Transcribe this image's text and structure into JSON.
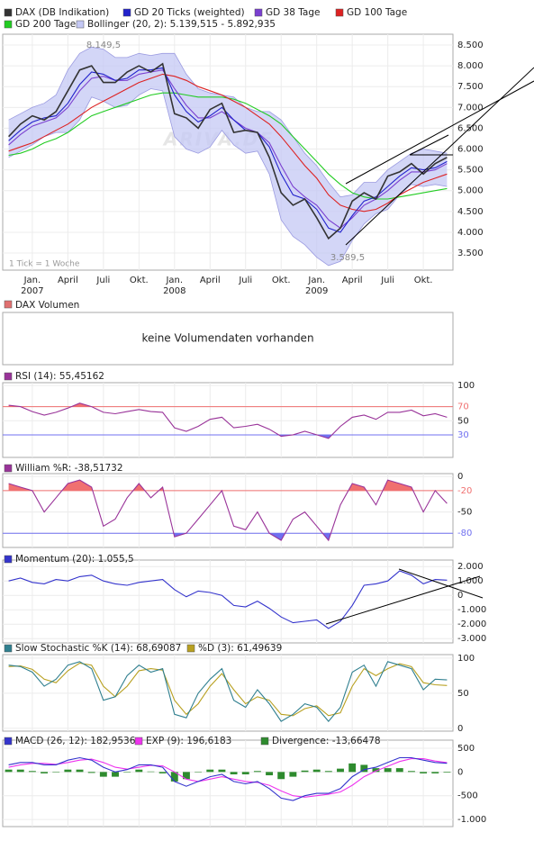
{
  "chart_data": [
    {
      "type": "line",
      "categories": [
        "2006-11",
        "2006-12",
        "2007-01",
        "2007-02",
        "2007-03",
        "2007-04",
        "2007-05",
        "2007-06",
        "2007-07",
        "2007-08",
        "2007-09",
        "2007-10",
        "2007-11",
        "2007-12",
        "2008-01",
        "2008-02",
        "2008-03",
        "2008-04",
        "2008-05",
        "2008-06",
        "2008-07",
        "2008-08",
        "2008-09",
        "2008-10",
        "2008-11",
        "2008-12",
        "2009-01",
        "2009-02",
        "2009-03",
        "2009-04",
        "2009-05",
        "2009-06",
        "2009-07",
        "2009-08",
        "2009-09",
        "2009-10",
        "2009-11",
        "2009-12"
      ],
      "series": [
        {
          "name": "DAX (DB Indikation)",
          "color": "#333333",
          "values": [
            6300,
            6600,
            6800,
            6700,
            6900,
            7400,
            7900,
            8000,
            7600,
            7600,
            7850,
            8000,
            7850,
            8050,
            6850,
            6750,
            6500,
            6950,
            7100,
            6400,
            6450,
            6400,
            5800,
            4950,
            4650,
            4800,
            4350,
            3850,
            4100,
            4750,
            4950,
            4800,
            5350,
            5450,
            5650,
            5400,
            5650,
            5800
          ]
        },
        {
          "name": "GD 20 Ticks (weighted)",
          "color": "#2222cc",
          "values": [
            6200,
            6450,
            6650,
            6750,
            6800,
            7100,
            7550,
            7850,
            7800,
            7650,
            7700,
            7900,
            7900,
            7950,
            7300,
            6900,
            6650,
            6800,
            7000,
            6700,
            6450,
            6400,
            6050,
            5400,
            4900,
            4800,
            4550,
            4100,
            4000,
            4400,
            4750,
            4850,
            5100,
            5350,
            5550,
            5500,
            5550,
            5700
          ]
        },
        {
          "name": "GD 38 Tage",
          "color": "#7a3fd0",
          "values": [
            6100,
            6350,
            6550,
            6650,
            6750,
            7000,
            7400,
            7700,
            7750,
            7650,
            7650,
            7800,
            7850,
            7900,
            7450,
            7050,
            6750,
            6750,
            6900,
            6700,
            6500,
            6400,
            6150,
            5600,
            5100,
            4850,
            4650,
            4300,
            4100,
            4350,
            4650,
            4800,
            5000,
            5250,
            5450,
            5450,
            5500,
            5650
          ]
        },
        {
          "name": "GD 100 Tage",
          "color": "#dd2222",
          "values": [
            5950,
            6050,
            6150,
            6300,
            6450,
            6600,
            6800,
            7000,
            7150,
            7300,
            7450,
            7600,
            7700,
            7800,
            7750,
            7650,
            7500,
            7400,
            7300,
            7150,
            7000,
            6800,
            6600,
            6300,
            5950,
            5600,
            5300,
            4900,
            4650,
            4550,
            4500,
            4550,
            4700,
            4900,
            5050,
            5200,
            5300,
            5400
          ]
        },
        {
          "name": "GD 200 Tage",
          "color": "#22cc22",
          "values": [
            5850,
            5900,
            6000,
            6150,
            6250,
            6400,
            6600,
            6800,
            6900,
            7000,
            7100,
            7200,
            7300,
            7350,
            7350,
            7300,
            7250,
            7250,
            7250,
            7200,
            7100,
            6950,
            6800,
            6600,
            6300,
            6000,
            5700,
            5400,
            5150,
            4950,
            4850,
            4800,
            4800,
            4850,
            4900,
            4950,
            5000,
            5050
          ]
        },
        {
          "name": "Bollinger (20, 2): 5.139,515 - 5.892,935",
          "type": "band",
          "color": "#c4c8f4",
          "upper": [
            6700,
            6850,
            7000,
            7100,
            7300,
            7900,
            8300,
            8450,
            8400,
            8200,
            8200,
            8300,
            8250,
            8300,
            8300,
            7800,
            7450,
            7350,
            7300,
            7250,
            7000,
            6900,
            6900,
            6700,
            6300,
            5900,
            5600,
            5200,
            4850,
            4900,
            5200,
            5200,
            5500,
            5700,
            5900,
            6000,
            5950,
            5900
          ],
          "lower": [
            5800,
            5950,
            6100,
            6300,
            6400,
            6400,
            6700,
            7250,
            7150,
            7000,
            7050,
            7300,
            7450,
            7400,
            6300,
            6000,
            5900,
            6050,
            6450,
            6100,
            5900,
            5950,
            5400,
            4300,
            3900,
            3700,
            3400,
            3200,
            3300,
            3800,
            4200,
            4450,
            4550,
            4900,
            5150,
            5100,
            5150,
            5100
          ]
        }
      ],
      "ylim": [
        3090,
        8760
      ],
      "yticks": [
        {
          "value": 3500,
          "label": "3.500"
        },
        {
          "value": 4000,
          "label": "4.000"
        },
        {
          "value": 4500,
          "label": "4.500"
        },
        {
          "value": 5000,
          "label": "5.000"
        },
        {
          "value": 5500,
          "label": "5.500"
        },
        {
          "value": 6000,
          "label": "6.000"
        },
        {
          "value": 6500,
          "label": "6.500"
        },
        {
          "value": 7000,
          "label": "7.000"
        },
        {
          "value": 7500,
          "label": "7.500"
        },
        {
          "value": 8000,
          "label": "8.000"
        },
        {
          "value": 8500,
          "label": "8.500"
        }
      ],
      "xticks": [
        {
          "value": "2007-01",
          "label": [
            "Jan.",
            "2007"
          ]
        },
        {
          "value": "2007-04",
          "label": [
            "April"
          ]
        },
        {
          "value": "2007-07",
          "label": [
            "Juli"
          ]
        },
        {
          "value": "2007-10",
          "label": [
            "Okt."
          ]
        },
        {
          "value": "2008-01",
          "label": [
            "Jan.",
            "2008"
          ]
        },
        {
          "value": "2008-04",
          "label": [
            "April"
          ]
        },
        {
          "value": "2008-07",
          "label": [
            "Juli"
          ]
        },
        {
          "value": "2008-10",
          "label": [
            "Okt."
          ]
        },
        {
          "value": "2009-01",
          "label": [
            "Jan.",
            "2009"
          ]
        },
        {
          "value": "2009-04",
          "label": [
            "April"
          ]
        },
        {
          "value": "2009-07",
          "label": [
            "Juli"
          ]
        },
        {
          "value": "2009-10",
          "label": [
            "Okt."
          ]
        }
      ],
      "grid": true,
      "annotations": [
        "8.149,5",
        "3.589,5"
      ],
      "note": "1 Tick = 1 Woche",
      "watermark": "ARIVA.DE"
    },
    {
      "type": "line",
      "series": [
        {
          "name": "RSI (14): 55,45162",
          "color": "#993399",
          "values": [
            72,
            70,
            63,
            58,
            62,
            68,
            75,
            70,
            62,
            60,
            63,
            66,
            63,
            62,
            40,
            35,
            42,
            52,
            55,
            40,
            42,
            45,
            38,
            28,
            30,
            35,
            30,
            25,
            42,
            55,
            58,
            52,
            62,
            62,
            65,
            57,
            60,
            55
          ]
        }
      ],
      "ylim": [
        -2,
        104
      ],
      "yticks": [
        30,
        50,
        70,
        100
      ],
      "grid": true,
      "reference_lines": [
        70,
        30
      ],
      "reference_colors": [
        "#f07070",
        "#7070f0"
      ],
      "reference_fill": true
    },
    {
      "type": "line",
      "series": [
        {
          "name": "William %R: -38,51732",
          "color": "#993399",
          "values": [
            -10,
            -15,
            -20,
            -50,
            -30,
            -10,
            -5,
            -15,
            -70,
            -60,
            -30,
            -10,
            -30,
            -15,
            -85,
            -80,
            -60,
            -40,
            -20,
            -70,
            -75,
            -50,
            -80,
            -90,
            -60,
            -50,
            -70,
            -90,
            -40,
            -10,
            -15,
            -40,
            -5,
            -10,
            -15,
            -50,
            -20,
            -38
          ]
        }
      ],
      "ylim": [
        -100,
        4
      ],
      "yticks": [
        -80,
        -50,
        -20,
        0
      ],
      "grid": true,
      "reference_lines": [
        -20,
        -80
      ],
      "reference_colors": [
        "#f07070",
        "#7070f0"
      ],
      "reference_fill": true
    },
    {
      "type": "line",
      "series": [
        {
          "name": "Momentum (20): 1.055,5",
          "color": "#3333cc",
          "values": [
            1000,
            1200,
            900,
            800,
            1100,
            1000,
            1300,
            1400,
            1000,
            800,
            700,
            900,
            1000,
            1100,
            400,
            -100,
            300,
            200,
            0,
            -700,
            -800,
            -400,
            -900,
            -1500,
            -1900,
            -1800,
            -1700,
            -2300,
            -1800,
            -700,
            700,
            800,
            1000,
            1700,
            1400,
            800,
            1100,
            1055
          ]
        }
      ],
      "ylim": [
        -3300,
        2450
      ],
      "yticks": [
        {
          "value": -3000,
          "label": "-3.000"
        },
        {
          "value": -2000,
          "label": "-2.000"
        },
        {
          "value": -1000,
          "label": "-1.000"
        },
        0,
        {
          "value": 1000,
          "label": "1.000"
        },
        {
          "value": 2000,
          "label": "2.000"
        }
      ],
      "grid": true
    },
    {
      "type": "line",
      "series": [
        {
          "name": "Slow Stochastic %K (14): 68,69087",
          "color": "#2f7f8f",
          "values": [
            90,
            88,
            80,
            60,
            70,
            90,
            95,
            85,
            40,
            45,
            75,
            90,
            80,
            85,
            20,
            15,
            50,
            70,
            85,
            40,
            30,
            55,
            35,
            10,
            20,
            35,
            30,
            10,
            30,
            80,
            90,
            60,
            95,
            90,
            85,
            55,
            70,
            69
          ]
        },
        {
          "name": "%D (3): 61,49639",
          "color": "#b8a020",
          "values": [
            88,
            89,
            84,
            70,
            65,
            82,
            93,
            90,
            60,
            45,
            60,
            82,
            85,
            83,
            40,
            20,
            35,
            60,
            78,
            55,
            35,
            45,
            40,
            20,
            18,
            28,
            32,
            18,
            22,
            60,
            85,
            75,
            85,
            92,
            88,
            65,
            62,
            61
          ]
        }
      ],
      "ylim": [
        -4,
        105
      ],
      "yticks": [
        0,
        50,
        100
      ],
      "grid": true
    },
    {
      "type": "line",
      "series": [
        {
          "name": "MACD (26, 12): 182,9536",
          "color": "#3333cc",
          "values": [
            150,
            200,
            200,
            150,
            150,
            250,
            300,
            250,
            100,
            0,
            50,
            150,
            150,
            100,
            -200,
            -300,
            -200,
            -100,
            -50,
            -200,
            -250,
            -200,
            -350,
            -550,
            -600,
            -500,
            -450,
            -450,
            -350,
            -100,
            50,
            100,
            200,
            300,
            300,
            250,
            200,
            183
          ]
        },
        {
          "name": "EXP (9): 196,6183",
          "color": "#ee33ee",
          "values": [
            100,
            150,
            180,
            180,
            160,
            200,
            250,
            270,
            200,
            100,
            60,
            100,
            140,
            130,
            0,
            -150,
            -200,
            -150,
            -100,
            -150,
            -200,
            -220,
            -280,
            -400,
            -500,
            -530,
            -500,
            -470,
            -420,
            -280,
            -100,
            20,
            120,
            220,
            280,
            280,
            230,
            197
          ]
        },
        {
          "name": "Divergence: -13,66478",
          "type": "bar",
          "color": "#2e8b2e",
          "values": [
            50,
            50,
            20,
            -30,
            -10,
            50,
            50,
            -20,
            -100,
            -100,
            -10,
            50,
            10,
            -30,
            -200,
            -150,
            0,
            50,
            50,
            -50,
            -50,
            20,
            -70,
            -150,
            -100,
            30,
            50,
            20,
            70,
            180,
            150,
            80,
            80,
            80,
            20,
            -30,
            -30,
            -14
          ]
        }
      ],
      "ylim": [
        -1150,
        670
      ],
      "yticks": [
        {
          "value": -1000,
          "label": "-1.000"
        },
        -500,
        0,
        500
      ],
      "grid": true
    }
  ],
  "volume_panel": {
    "title": "DAX Volumen",
    "color": "#e07070",
    "message": "keine Volumendaten vorhanden"
  }
}
